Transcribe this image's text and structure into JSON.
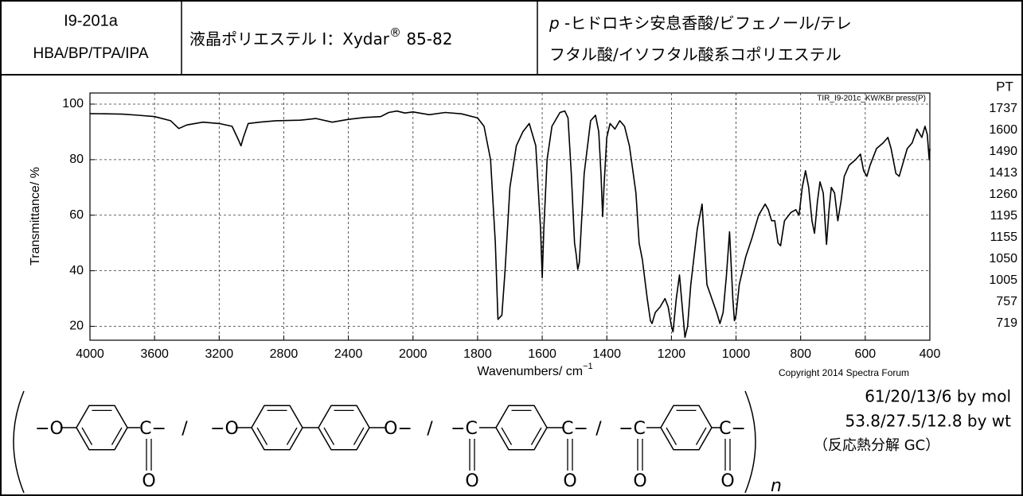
{
  "header": {
    "code": "I9-201a",
    "abbrev": "HBA/BP/TPA/IPA",
    "name": "液晶ポリエステル Ⅰ：Xydar",
    "name_mark": "®",
    "name_grade": " 85-82",
    "description_italic": "p",
    "description_line1": " -ヒドロキシ安息香酸/ビフェノール/テレ",
    "description_line2": "フタル酸/イソフタル酸系コポリエステル"
  },
  "chart_data": {
    "type": "line",
    "ylabel": "Transmittance/ %",
    "xlabel": "Wavenumbers/ cm",
    "xlabel_sup": "−1",
    "annotation": "TIR_I9-201c_KW/KBr press(P)",
    "copyright": "Copyright 2014 Spectra Forum",
    "color": "#000000",
    "xlim": [
      4000,
      400
    ],
    "x_scale": {
      "break": 2000,
      "factor_above": 0.5
    },
    "ylim": [
      15,
      104
    ],
    "xticks": [
      4000,
      3600,
      3200,
      2800,
      2400,
      2000,
      1800,
      1600,
      1400,
      1200,
      1000,
      800,
      600,
      400
    ],
    "yticks": [
      20,
      40,
      60,
      80,
      100
    ],
    "grid": true,
    "x": [
      4000,
      3900,
      3800,
      3700,
      3600,
      3500,
      3450,
      3400,
      3300,
      3200,
      3120,
      3080,
      3065,
      3050,
      3020,
      2950,
      2850,
      2700,
      2600,
      2500,
      2400,
      2300,
      2200,
      2150,
      2100,
      2050,
      2000,
      1950,
      1900,
      1850,
      1800,
      1780,
      1760,
      1745,
      1737,
      1725,
      1715,
      1700,
      1680,
      1660,
      1640,
      1620,
      1605,
      1600,
      1595,
      1585,
      1570,
      1545,
      1530,
      1520,
      1510,
      1500,
      1495,
      1490,
      1485,
      1470,
      1450,
      1435,
      1425,
      1418,
      1413,
      1408,
      1400,
      1390,
      1375,
      1360,
      1345,
      1330,
      1310,
      1300,
      1290,
      1275,
      1265,
      1260,
      1250,
      1235,
      1220,
      1210,
      1200,
      1195,
      1185,
      1175,
      1165,
      1158,
      1150,
      1140,
      1120,
      1105,
      1098,
      1090,
      1075,
      1060,
      1050,
      1040,
      1030,
      1020,
      1010,
      1005,
      1000,
      990,
      970,
      950,
      930,
      910,
      900,
      890,
      880,
      870,
      862,
      850,
      830,
      815,
      805,
      795,
      785,
      775,
      765,
      757,
      748,
      740,
      730,
      720,
      712,
      705,
      695,
      685,
      675,
      665,
      650,
      630,
      615,
      605,
      595,
      585,
      565,
      545,
      530,
      520,
      505,
      495,
      485,
      470,
      455,
      440,
      425,
      415,
      408,
      402,
      400
    ],
    "values": [
      96.6,
      96.5,
      96.4,
      96.0,
      95.5,
      94.0,
      91.2,
      92.5,
      93.5,
      93.0,
      92.0,
      87,
      85,
      88,
      93,
      93.5,
      94,
      94.2,
      94.8,
      93.5,
      94.5,
      95.2,
      95.5,
      97,
      97.5,
      96.8,
      97.2,
      96.2,
      97,
      96.5,
      95,
      92,
      80,
      50,
      22.5,
      24,
      40,
      70,
      85,
      90,
      93,
      85,
      55,
      37.5,
      55,
      80,
      92,
      97,
      97.5,
      95,
      75,
      50,
      46,
      40.5,
      43,
      75,
      94,
      96,
      90,
      75,
      59.5,
      72,
      88,
      93,
      91,
      94,
      92,
      85,
      68,
      50,
      44,
      30,
      22,
      21,
      25,
      27,
      30,
      27,
      20,
      18,
      30,
      38.5,
      25,
      16,
      20,
      35,
      55,
      64,
      50,
      35,
      30,
      25,
      21,
      25,
      38,
      54,
      30,
      22,
      24,
      35,
      45,
      52,
      60,
      64,
      62,
      58,
      58,
      50,
      49,
      58,
      61,
      62,
      60,
      70,
      76,
      70,
      58,
      53.5,
      65,
      72,
      68,
      49.5,
      62,
      70,
      68,
      58,
      65,
      74,
      78,
      80,
      82,
      76,
      74,
      78,
      84,
      86,
      88,
      84,
      75,
      74,
      78,
      84,
      86,
      91,
      88,
      92,
      89,
      80,
      84
    ]
  },
  "peak_table": {
    "title": "PT",
    "values": [
      1737,
      1600,
      1490,
      1413,
      1260,
      1195,
      1155,
      1050,
      1005,
      757,
      719
    ]
  },
  "composition": [
    "61/20/13/6 by mol",
    "53.8/27.5/12.8 by wt",
    "（反応熱分解 GC）"
  ],
  "structure": {
    "groups": [
      "−O",
      "C−",
      "/",
      "−O",
      "O−",
      "/",
      "−C",
      "C−",
      "/",
      "−C",
      "C−"
    ],
    "carbonyl_oxygens": [
      "O",
      "O",
      "O",
      "O",
      "O"
    ],
    "repeat": "n"
  }
}
